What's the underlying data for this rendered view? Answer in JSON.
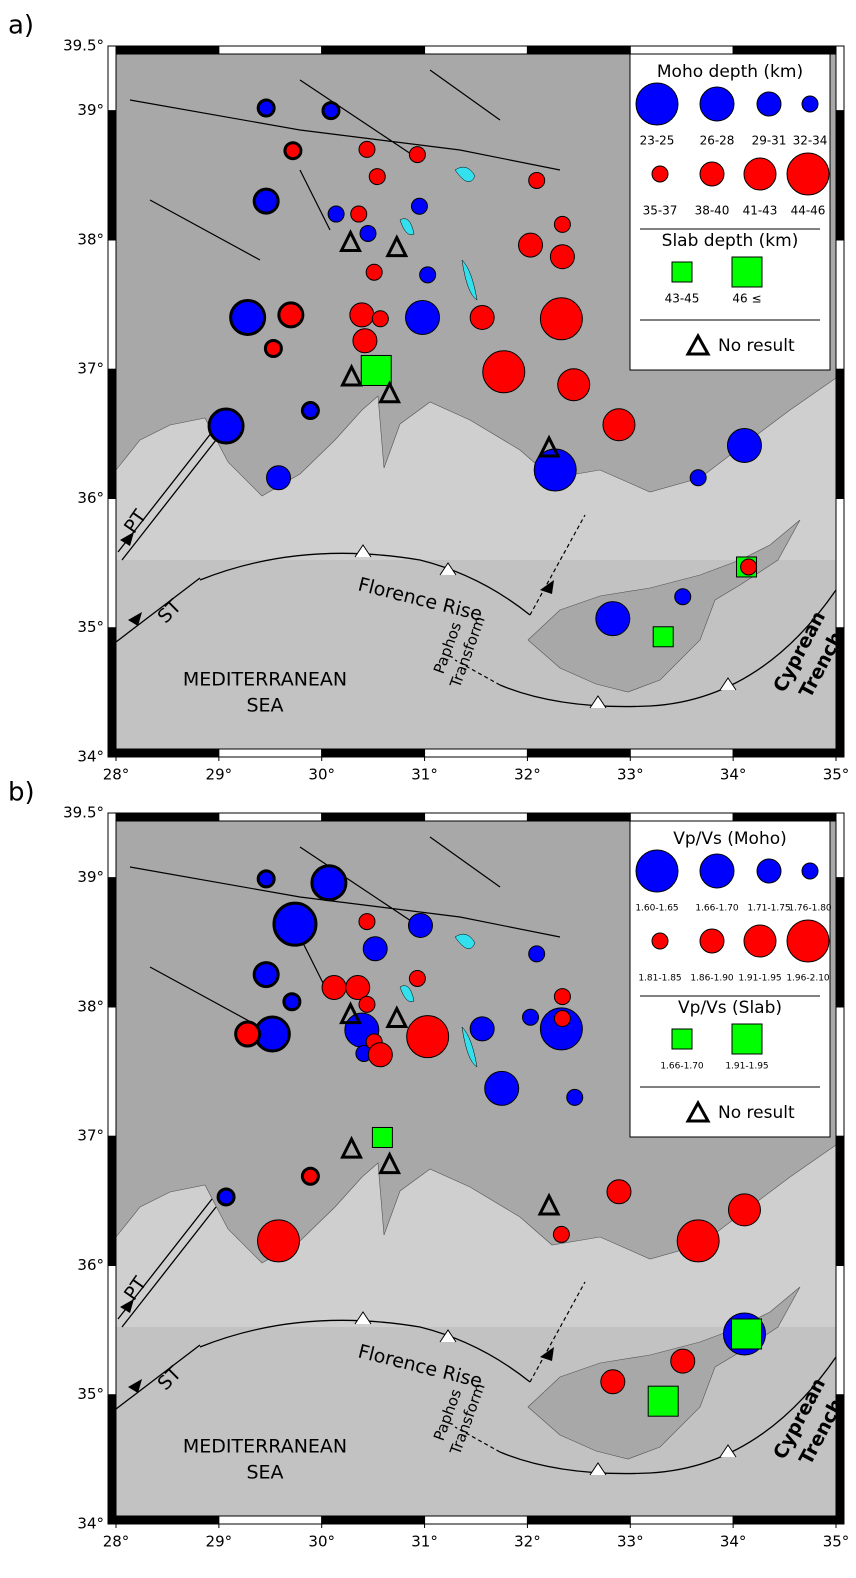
{
  "map": {
    "xlim": [
      28,
      35
    ],
    "ylim": [
      34,
      39.5
    ],
    "xticks": [
      {
        "value": 28,
        "label": "28°"
      },
      {
        "value": 29,
        "label": "29°"
      },
      {
        "value": 30,
        "label": "30°"
      },
      {
        "value": 31,
        "label": "31°"
      },
      {
        "value": 32,
        "label": "32°"
      },
      {
        "value": 33,
        "label": "33°"
      },
      {
        "value": 34,
        "label": "34°"
      },
      {
        "value": 35,
        "label": "35°"
      }
    ],
    "yticks": [
      {
        "value": 34,
        "label": "34°"
      },
      {
        "value": 35,
        "label": "35°"
      },
      {
        "value": 36,
        "label": "36°"
      },
      {
        "value": 37,
        "label": "37°"
      },
      {
        "value": 38,
        "label": "38°"
      },
      {
        "value": 39,
        "label": "39°"
      },
      {
        "value": 39.5,
        "label": "39.5°"
      }
    ],
    "labels": {
      "pt": "PT",
      "st": "ST",
      "florence": "Florence Rise",
      "sea1": "MEDITERRANEAN",
      "sea2": "SEA",
      "paphos1": "Paphos",
      "paphos2": "Transform",
      "trench1": "Cyprean",
      "trench2": "Trench"
    }
  },
  "panels": [
    {
      "label": "a)",
      "legend": {
        "title": "Moho depth (km)",
        "circle_labels": [
          "23-25",
          "26-28",
          "29-31",
          "32-34",
          "35-37",
          "38-40",
          "41-43",
          "44-46"
        ],
        "circle_colors": [
          "#0000ff",
          "#0000ff",
          "#0000ff",
          "#0000ff",
          "#ff0000",
          "#ff0000",
          "#ff0000",
          "#ff0000"
        ],
        "slab_title": "Slab depth (km)",
        "square_labels": [
          "43-45",
          "46 ≤"
        ],
        "square_color": "#00ff00",
        "no_result": "No result"
      },
      "circles": [
        {
          "lon": 29.46,
          "lat": 39.02,
          "class": 3,
          "outline": true
        },
        {
          "lon": 30.09,
          "lat": 39.0,
          "class": 3,
          "outline": true
        },
        {
          "lon": 29.46,
          "lat": 38.3,
          "class": 2,
          "outline": true
        },
        {
          "lon": 29.28,
          "lat": 37.4,
          "class": 1,
          "outline": true
        },
        {
          "lon": 29.07,
          "lat": 36.56,
          "class": 1,
          "outline": true
        },
        {
          "lon": 29.58,
          "lat": 36.16,
          "class": 2
        },
        {
          "lon": 29.89,
          "lat": 36.68,
          "class": 3,
          "outline": true
        },
        {
          "lon": 30.14,
          "lat": 38.2,
          "class": 3
        },
        {
          "lon": 30.45,
          "lat": 38.05,
          "class": 3
        },
        {
          "lon": 30.95,
          "lat": 38.26,
          "class": 3
        },
        {
          "lon": 31.03,
          "lat": 37.73,
          "class": 3
        },
        {
          "lon": 30.98,
          "lat": 37.4,
          "class": 1
        },
        {
          "lon": 32.27,
          "lat": 36.22,
          "class": 0
        },
        {
          "lon": 33.66,
          "lat": 36.16,
          "class": 3
        },
        {
          "lon": 34.11,
          "lat": 36.41,
          "class": 1
        },
        {
          "lon": 33.51,
          "lat": 35.24,
          "class": 3
        },
        {
          "lon": 32.83,
          "lat": 35.07,
          "class": 1
        },
        {
          "lon": 29.72,
          "lat": 38.69,
          "class": 4,
          "outline": true
        },
        {
          "lon": 30.44,
          "lat": 38.7,
          "class": 4
        },
        {
          "lon": 30.93,
          "lat": 38.66,
          "class": 4
        },
        {
          "lon": 30.54,
          "lat": 38.49,
          "class": 4
        },
        {
          "lon": 32.09,
          "lat": 38.46,
          "class": 4
        },
        {
          "lon": 30.36,
          "lat": 38.2,
          "class": 4
        },
        {
          "lon": 32.34,
          "lat": 38.12,
          "class": 4
        },
        {
          "lon": 32.03,
          "lat": 37.96,
          "class": 5
        },
        {
          "lon": 32.34,
          "lat": 37.87,
          "class": 5
        },
        {
          "lon": 30.51,
          "lat": 37.75,
          "class": 4
        },
        {
          "lon": 29.7,
          "lat": 37.42,
          "class": 5,
          "outline": true
        },
        {
          "lon": 30.39,
          "lat": 37.42,
          "class": 5
        },
        {
          "lon": 30.57,
          "lat": 37.39,
          "class": 4
        },
        {
          "lon": 30.42,
          "lat": 37.22,
          "class": 5
        },
        {
          "lon": 29.53,
          "lat": 37.16,
          "class": 4,
          "outline": true
        },
        {
          "lon": 31.56,
          "lat": 37.4,
          "class": 5
        },
        {
          "lon": 32.33,
          "lat": 37.39,
          "class": 7
        },
        {
          "lon": 31.77,
          "lat": 36.98,
          "class": 7
        },
        {
          "lon": 32.45,
          "lat": 36.88,
          "class": 6
        },
        {
          "lon": 32.89,
          "lat": 36.57,
          "class": 6
        }
      ],
      "squares": [
        {
          "lon": 30.53,
          "lat": 36.99,
          "class": 1
        },
        {
          "lon": 34.13,
          "lat": 35.47,
          "class": 0
        },
        {
          "lon": 33.32,
          "lat": 34.93,
          "class": 0
        }
      ],
      "circles_on_top": [
        {
          "lon": 34.15,
          "lat": 35.47,
          "class": 4
        }
      ],
      "no_result": [
        {
          "lon": 30.28,
          "lat": 37.98
        },
        {
          "lon": 30.73,
          "lat": 37.94
        },
        {
          "lon": 30.29,
          "lat": 36.94
        },
        {
          "lon": 30.66,
          "lat": 36.81
        },
        {
          "lon": 32.21,
          "lat": 36.39
        }
      ]
    },
    {
      "label": "b)",
      "legend": {
        "title": "Vp/Vs (Moho)",
        "circle_labels": [
          "1.60-1.65",
          "1.66-1.70",
          "1.71-1.75",
          "1.76-1.80",
          "1.81-1.85",
          "1.86-1.90",
          "1.91-1.95",
          "1.96-2.10"
        ],
        "circle_colors": [
          "#0000ff",
          "#0000ff",
          "#0000ff",
          "#0000ff",
          "#ff0000",
          "#ff0000",
          "#ff0000",
          "#ff0000"
        ],
        "slab_title": "Vp/Vs (Slab)",
        "square_labels": [
          "1.66-1.70",
          "1.91-1.95"
        ],
        "square_color": "#00ff00",
        "no_result": "No result"
      },
      "circles": [
        {
          "lon": 29.46,
          "lat": 38.99,
          "class": 3,
          "outline": true
        },
        {
          "lon": 30.07,
          "lat": 38.96,
          "class": 1,
          "outline": true
        },
        {
          "lon": 29.74,
          "lat": 38.64,
          "class": 0,
          "outline": true
        },
        {
          "lon": 29.46,
          "lat": 38.25,
          "class": 2,
          "outline": true
        },
        {
          "lon": 30.52,
          "lat": 38.45,
          "class": 2
        },
        {
          "lon": 30.96,
          "lat": 38.63,
          "class": 2
        },
        {
          "lon": 32.09,
          "lat": 38.41,
          "class": 3
        },
        {
          "lon": 32.03,
          "lat": 37.92,
          "class": 3
        },
        {
          "lon": 30.39,
          "lat": 37.82,
          "class": 1
        },
        {
          "lon": 30.41,
          "lat": 37.64,
          "class": 3
        },
        {
          "lon": 29.52,
          "lat": 37.79,
          "class": 1,
          "outline": true
        },
        {
          "lon": 29.71,
          "lat": 38.04,
          "class": 3,
          "outline": true
        },
        {
          "lon": 30.97,
          "lat": 37.81,
          "class": 3
        },
        {
          "lon": 31.56,
          "lat": 37.83,
          "class": 2
        },
        {
          "lon": 31.75,
          "lat": 37.37,
          "class": 1
        },
        {
          "lon": 32.33,
          "lat": 37.83,
          "class": 0
        },
        {
          "lon": 32.46,
          "lat": 37.3,
          "class": 3
        },
        {
          "lon": 29.07,
          "lat": 36.53,
          "class": 3,
          "outline": true
        },
        {
          "lon": 30.44,
          "lat": 38.66,
          "class": 4
        },
        {
          "lon": 30.12,
          "lat": 38.15,
          "class": 5
        },
        {
          "lon": 30.35,
          "lat": 38.15,
          "class": 5
        },
        {
          "lon": 30.44,
          "lat": 38.02,
          "class": 4
        },
        {
          "lon": 30.93,
          "lat": 38.22,
          "class": 4
        },
        {
          "lon": 30.51,
          "lat": 37.73,
          "class": 4
        },
        {
          "lon": 31.03,
          "lat": 37.77,
          "class": 7
        },
        {
          "lon": 30.57,
          "lat": 37.63,
          "class": 5
        },
        {
          "lon": 29.28,
          "lat": 37.79,
          "class": 5,
          "outline": true
        },
        {
          "lon": 29.89,
          "lat": 36.69,
          "class": 4,
          "outline": true
        },
        {
          "lon": 29.58,
          "lat": 36.19,
          "class": 7
        },
        {
          "lon": 32.34,
          "lat": 38.08,
          "class": 4
        },
        {
          "lon": 32.34,
          "lat": 37.91,
          "class": 4
        },
        {
          "lon": 32.89,
          "lat": 36.57,
          "class": 5
        },
        {
          "lon": 33.66,
          "lat": 36.19,
          "class": 7
        },
        {
          "lon": 34.11,
          "lat": 36.43,
          "class": 6
        },
        {
          "lon": 32.33,
          "lat": 36.24,
          "class": 4
        },
        {
          "lon": 33.51,
          "lat": 35.26,
          "class": 5
        },
        {
          "lon": 32.83,
          "lat": 35.1,
          "class": 5
        },
        {
          "lon": 34.11,
          "lat": 35.47,
          "class": 0
        }
      ],
      "squares": [
        {
          "lon": 30.59,
          "lat": 36.99,
          "class": 0
        },
        {
          "lon": 33.32,
          "lat": 34.95,
          "class": 1
        },
        {
          "lon": 34.13,
          "lat": 35.47,
          "class": 1
        }
      ],
      "circles_on_top": [],
      "no_result": [
        {
          "lon": 30.28,
          "lat": 37.94
        },
        {
          "lon": 30.73,
          "lat": 37.91
        },
        {
          "lon": 30.29,
          "lat": 36.9
        },
        {
          "lon": 30.66,
          "lat": 36.78
        },
        {
          "lon": 32.21,
          "lat": 36.46
        }
      ]
    }
  ]
}
